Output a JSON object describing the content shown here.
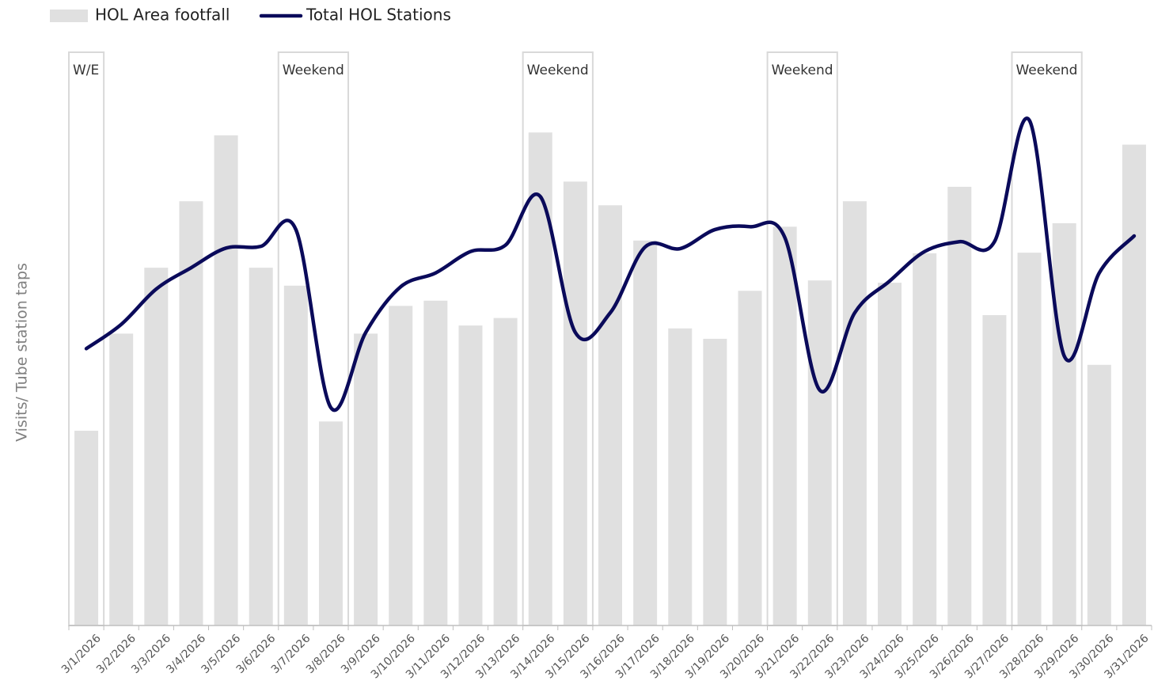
{
  "chart_data": {
    "type": "bar-line",
    "y_label": "Visits/ Tube station taps",
    "categories": [
      "3/1/2026",
      "3/2/2026",
      "3/3/2026",
      "3/4/2026",
      "3/5/2026",
      "3/6/2026",
      "3/7/2026",
      "3/8/2026",
      "3/9/2026",
      "3/10/2026",
      "3/11/2026",
      "3/12/2026",
      "3/13/2026",
      "3/14/2026",
      "3/15/2026",
      "3/16/2026",
      "3/17/2026",
      "3/18/2026",
      "3/19/2026",
      "3/20/2026",
      "3/21/2026",
      "3/22/2026",
      "3/23/2026",
      "3/24/2026",
      "3/25/2026",
      "3/26/2026",
      "3/27/2026",
      "3/28/2026",
      "3/29/2026",
      "3/30/2026",
      "3/31/2026"
    ],
    "series": [
      {
        "name": "HOL Area footfall",
        "type": "bar",
        "color": "#e0e0e0",
        "values": [
          33.7,
          50.5,
          61.9,
          73.4,
          84.8,
          61.9,
          58.8,
          35.3,
          50.5,
          55.3,
          56.2,
          51.9,
          53.2,
          85.3,
          76.8,
          72.7,
          66.6,
          51.4,
          49.6,
          57.9,
          69.0,
          59.7,
          73.4,
          59.3,
          64.4,
          75.9,
          53.7,
          64.5,
          69.6,
          45.1,
          83.2
        ]
      },
      {
        "name": "Total HOL Stations",
        "type": "line",
        "color": "#0a0a5a",
        "values": [
          47.9,
          52.1,
          58.2,
          61.9,
          65.3,
          65.6,
          68.5,
          37.7,
          50.7,
          58.6,
          61.0,
          64.7,
          65.8,
          74.2,
          50.7,
          54.1,
          65.5,
          65.2,
          68.5,
          69.0,
          67.1,
          40.7,
          54.1,
          59.6,
          64.7,
          66.4,
          66.4,
          87.4,
          46.6,
          61.0,
          67.4
        ]
      }
    ],
    "annotations": [
      {
        "label": "W/E",
        "from": "3/1/2026",
        "to": "3/1/2026"
      },
      {
        "label": "Weekend",
        "from": "3/7/2026",
        "to": "3/8/2026"
      },
      {
        "label": "Weekend",
        "from": "3/14/2026",
        "to": "3/15/2026"
      },
      {
        "label": "Weekend",
        "from": "3/21/2026",
        "to": "3/22/2026"
      },
      {
        "label": "Weekend",
        "from": "3/28/2026",
        "to": "3/29/2026"
      }
    ],
    "ylim": [
      0,
      100
    ]
  }
}
